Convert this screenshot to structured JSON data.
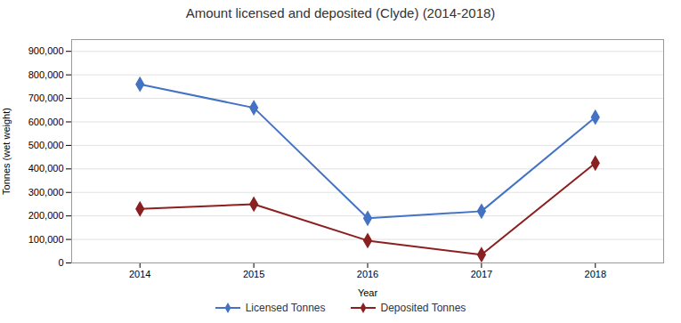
{
  "chart_data": {
    "type": "line",
    "title": "Amount licensed and deposited (Clyde) (2014-2018)",
    "xlabel": "Year",
    "ylabel": "Tonnes (wet weight)",
    "x": [
      2014,
      2015,
      2016,
      2017,
      2018
    ],
    "series": [
      {
        "name": "Licensed Tonnes",
        "color": "#4472C4",
        "marker": "diamond",
        "values": [
          760000,
          660000,
          190000,
          220000,
          620000
        ]
      },
      {
        "name": "Deposited Tonnes",
        "color": "#8B2020",
        "marker": "diamond",
        "values": [
          230000,
          250000,
          95000,
          35000,
          425000
        ]
      }
    ],
    "xlim": [
      2013.4,
      2018.6
    ],
    "xticks": [
      2014,
      2015,
      2016,
      2017,
      2018
    ],
    "ylim": [
      0,
      950000
    ],
    "yticks": [
      0,
      {
        "value": 100000,
        "label": "100,000"
      },
      {
        "value": 200000,
        "label": "200,000"
      },
      {
        "value": 300000,
        "label": "300,000"
      },
      {
        "value": 400000,
        "label": "400,000"
      },
      {
        "value": 500000,
        "label": "500,000"
      },
      {
        "value": 600000,
        "label": "600,000"
      },
      {
        "value": 700000,
        "label": "700,000"
      },
      {
        "value": 800000,
        "label": "800,000"
      },
      {
        "value": 900000,
        "label": "900,000"
      }
    ],
    "grid": true,
    "legend": "bottom"
  }
}
